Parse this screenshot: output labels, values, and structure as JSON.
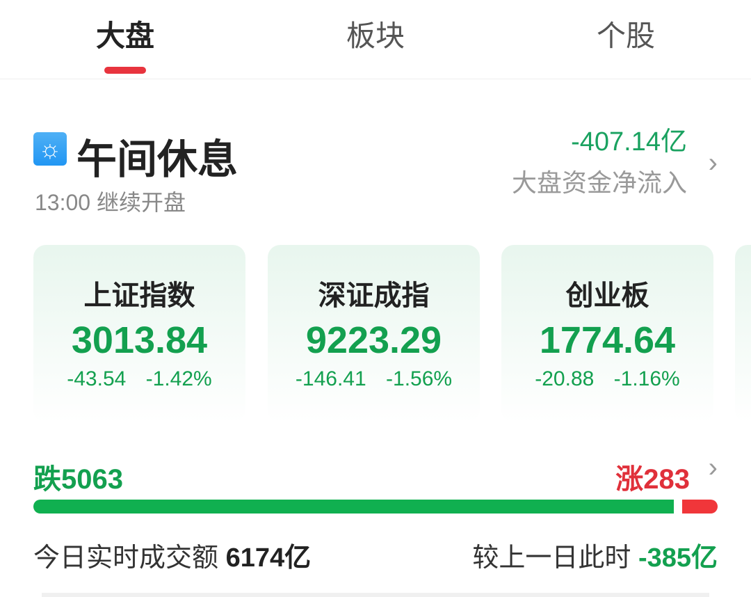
{
  "tabs": [
    {
      "label": "大盘",
      "active": true
    },
    {
      "label": "板块"
    },
    {
      "label": "个股"
    }
  ],
  "status": {
    "icon": "sun-icon",
    "title": "午间休息",
    "subtitle": "13:00 继续开盘"
  },
  "fund_flow": {
    "value": "-407.14亿",
    "label": "大盘资金净流入"
  },
  "indices": [
    {
      "name": "上证指数",
      "value": "3013.84",
      "change": "-43.54",
      "pct": "-1.42%"
    },
    {
      "name": "深证成指",
      "value": "9223.29",
      "change": "-146.41",
      "pct": "-1.56%"
    },
    {
      "name": "创业板",
      "value": "1774.64",
      "change": "-20.88",
      "pct": "-1.16%"
    }
  ],
  "breadth": {
    "fall_label": "跌5063",
    "rise_label": "涨283",
    "fall": 5063,
    "rise": 283
  },
  "turnover": {
    "label": "今日实时成交额",
    "value": "6174亿",
    "compare_label": "较上一日此时",
    "compare_value": "-385亿"
  },
  "colors": {
    "up": "#e0303a",
    "down": "#13a04f"
  }
}
